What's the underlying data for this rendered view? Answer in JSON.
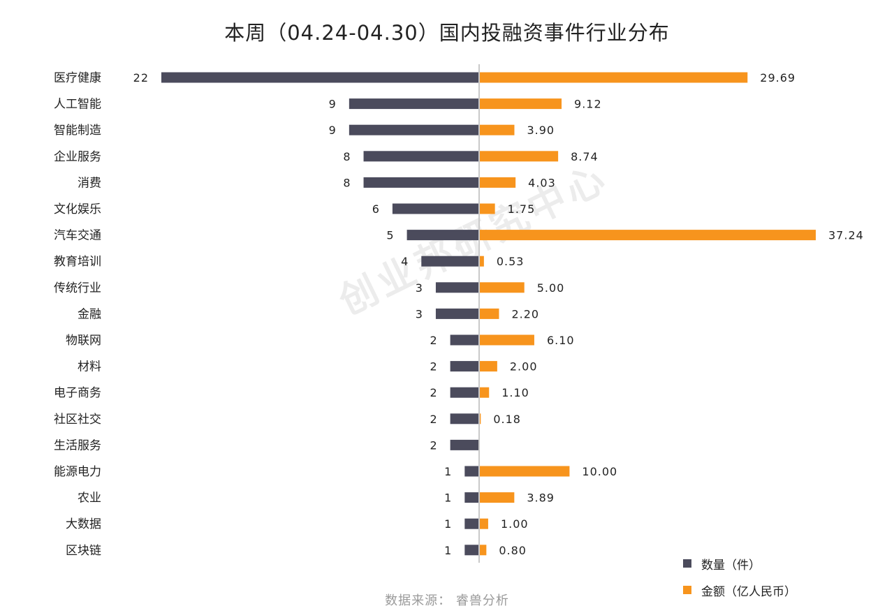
{
  "title": "本周（04.24-04.30）国内投融资事件行业分布",
  "source": "数据来源：  睿兽分析",
  "watermark": "创业邦研究中心",
  "colors": {
    "count": "#4b4b5c",
    "amount": "#f7941d",
    "axis": "#c9c9c9"
  },
  "legend": {
    "count_label": "数量（件）",
    "amount_label": "金额（亿人民币）"
  },
  "chart_data": {
    "type": "bar",
    "orientation": "horizontal-diverging",
    "title": "本周（04.24-04.30）国内投融资事件行业分布",
    "categories": [
      "医疗健康",
      "人工智能",
      "智能制造",
      "企业服务",
      "消费",
      "文化娱乐",
      "汽车交通",
      "教育培训",
      "传统行业",
      "金融",
      "物联网",
      "材料",
      "电子商务",
      "社区社交",
      "生活服务",
      "能源电力",
      "农业",
      "大数据",
      "区块链"
    ],
    "series": [
      {
        "name": "数量（件）",
        "side": "left",
        "values": [
          22,
          9,
          9,
          8,
          8,
          6,
          5,
          4,
          3,
          3,
          2,
          2,
          2,
          2,
          2,
          1,
          1,
          1,
          1
        ],
        "labels": [
          "22",
          "9",
          "9",
          "8",
          "8",
          "6",
          "5",
          "4",
          "3",
          "3",
          "2",
          "2",
          "2",
          "2",
          "2",
          "1",
          "1",
          "1",
          "1"
        ]
      },
      {
        "name": "金额（亿人民币）",
        "side": "right",
        "values": [
          29.69,
          9.12,
          3.9,
          8.74,
          4.03,
          1.75,
          37.24,
          0.53,
          5.0,
          2.2,
          6.1,
          2.0,
          1.1,
          0.18,
          null,
          10.0,
          3.89,
          1.0,
          0.8
        ],
        "labels": [
          "29.69",
          "9.12",
          "3.90",
          "8.74",
          "4.03",
          "1.75",
          "37.24",
          "0.53",
          "5.00",
          "2.20",
          "6.10",
          "2.00",
          "1.10",
          "0.18",
          "",
          "10.00",
          "3.89",
          "1.00",
          "0.80"
        ]
      }
    ],
    "grid": false,
    "legend_position": "bottom-right"
  }
}
